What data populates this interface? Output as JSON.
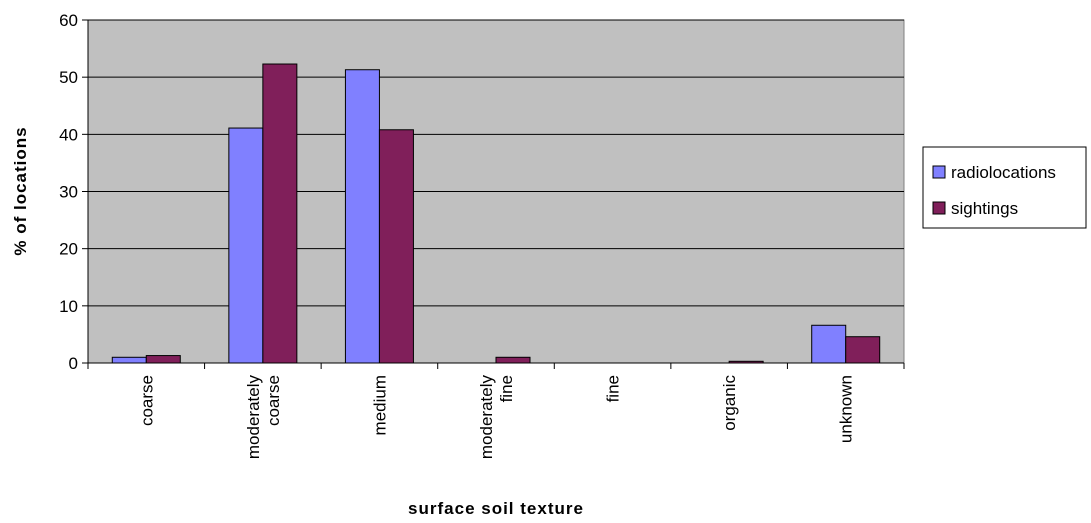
{
  "chart_data": {
    "type": "bar",
    "title": "",
    "xlabel": "surface soil texture",
    "ylabel": "% of locations",
    "ylim": [
      0,
      60
    ],
    "yticks": [
      0,
      10,
      20,
      30,
      40,
      50,
      60
    ],
    "grid": true,
    "legend_position": "right",
    "categories": [
      [
        "coarse"
      ],
      [
        "moderately",
        "coarse"
      ],
      [
        "medium"
      ],
      [
        "moderately",
        "fine"
      ],
      [
        "fine"
      ],
      [
        "organic"
      ],
      [
        "unknown"
      ]
    ],
    "series": [
      {
        "name": "radiolocations",
        "color": "#8080ff",
        "values": [
          1.0,
          41.1,
          51.3,
          0,
          0,
          0,
          6.6
        ]
      },
      {
        "name": "sightings",
        "color": "#801f5a",
        "values": [
          1.3,
          52.3,
          40.8,
          1.0,
          0,
          0.3,
          4.6
        ]
      }
    ],
    "plot_background": "#c0c0c0"
  }
}
